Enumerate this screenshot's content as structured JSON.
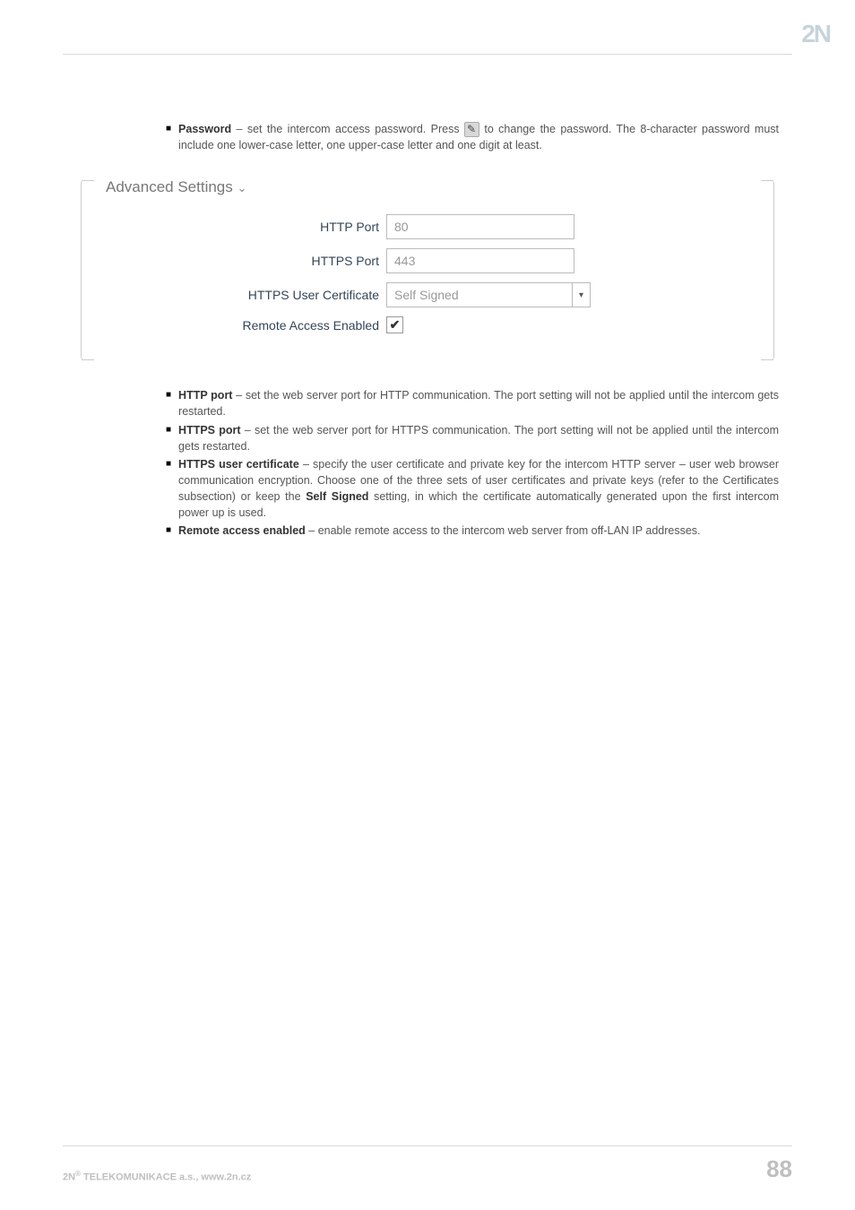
{
  "logo": "2N",
  "intro": {
    "strong": "Password",
    "text_before": " – set the intercom access password. Press ",
    "text_after": " to change the password. The 8-character password must include one lower-case letter, one upper-case letter and one digit at least."
  },
  "panel": {
    "title": "Advanced Settings",
    "fields": {
      "http_port": {
        "label": "HTTP Port",
        "value": "80"
      },
      "https_port": {
        "label": "HTTPS Port",
        "value": "443"
      },
      "https_cert": {
        "label": "HTTPS User Certificate",
        "value": "Self Signed"
      },
      "remote_access": {
        "label": "Remote Access Enabled",
        "checked": "✔"
      }
    }
  },
  "bullets": [
    {
      "strong": "HTTP port",
      "text": " – set the web server port for HTTP communication. The port setting will not be applied until the intercom gets restarted."
    },
    {
      "strong": "HTTPS port",
      "text": " – set the web server port for HTTPS communication. The port setting will not be applied until the intercom gets restarted."
    },
    {
      "strong": "HTTPS user certificate",
      "text_a": " – specify the user certificate and private key for the intercom HTTP server – user web browser communication encryption. Choose one of the three sets of user certificates and private keys (refer to the Certificates subsection) or keep the ",
      "strong2": "Self Signed",
      "text_b": " setting, in which the certificate automatically generated upon the first intercom power up is used."
    },
    {
      "strong": "Remote access enabled",
      "text": " – enable remote access to the intercom web server from off-LAN IP addresses."
    }
  ],
  "footer": {
    "left_a": "2N",
    "left_sup": "®",
    "left_b": " TELEKOMUNIKACE a.s., www.2n.cz",
    "page": "88"
  }
}
